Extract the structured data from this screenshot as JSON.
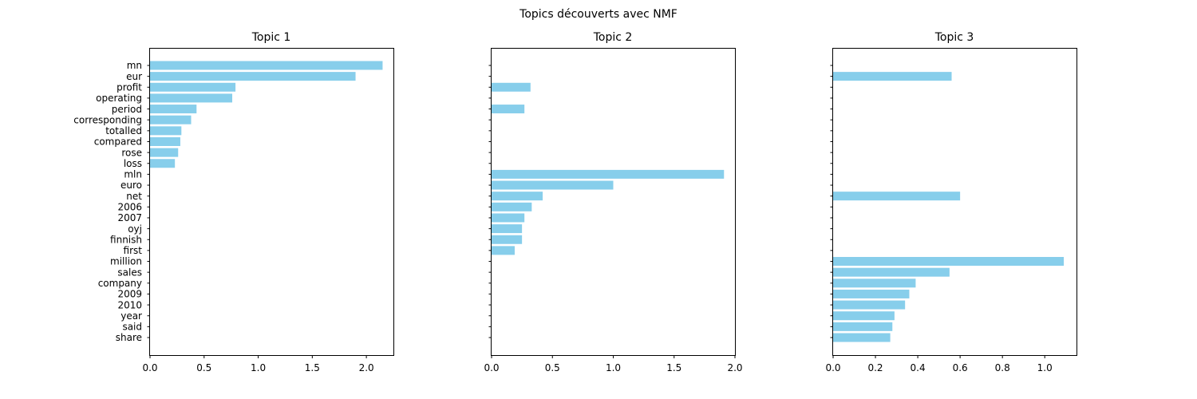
{
  "chart_data": {
    "type": "bar",
    "orientation": "horizontal",
    "title": "Topics découverts avec NMF",
    "bar_color": "#87ceeb",
    "categories": [
      "mn",
      "eur",
      "profit",
      "operating",
      "period",
      "corresponding",
      "totalled",
      "compared",
      "rose",
      "loss",
      "mln",
      "euro",
      "net",
      "2006",
      "2007",
      "oyj",
      "finnish",
      "first",
      "million",
      "sales",
      "company",
      "2009",
      "2010",
      "year",
      "said",
      "share"
    ],
    "panels": [
      {
        "title": "Topic 1",
        "xlim": [
          0,
          2.25
        ],
        "xticks": [
          "0.0",
          "0.5",
          "1.0",
          "1.5",
          "2.0"
        ],
        "xtick_values": [
          0,
          0.5,
          1.0,
          1.5,
          2.0
        ],
        "show_ytick_labels": true,
        "values": [
          2.15,
          1.9,
          0.79,
          0.76,
          0.43,
          0.38,
          0.29,
          0.28,
          0.26,
          0.23,
          0,
          0,
          0,
          0,
          0,
          0,
          0,
          0,
          0,
          0,
          0,
          0,
          0,
          0,
          0,
          0
        ]
      },
      {
        "title": "Topic 2",
        "xlim": [
          0,
          2.0
        ],
        "xticks": [
          "0.0",
          "0.5",
          "1.0",
          "1.5",
          "2.0"
        ],
        "xtick_values": [
          0,
          0.5,
          1.0,
          1.5,
          2.0
        ],
        "show_ytick_labels": false,
        "values": [
          0,
          0,
          0.32,
          0,
          0.27,
          0,
          0,
          0,
          0,
          0,
          1.91,
          1.0,
          0.42,
          0.33,
          0.27,
          0.25,
          0.25,
          0.19,
          0,
          0,
          0,
          0,
          0,
          0,
          0,
          0
        ]
      },
      {
        "title": "Topic 3",
        "xlim": [
          0,
          1.15
        ],
        "xticks": [
          "0.0",
          "0.2",
          "0.4",
          "0.6",
          "0.8",
          "1.0"
        ],
        "xtick_values": [
          0,
          0.2,
          0.4,
          0.6,
          0.8,
          1.0
        ],
        "show_ytick_labels": false,
        "values": [
          0,
          0.56,
          0,
          0,
          0,
          0,
          0,
          0,
          0,
          0,
          0,
          0,
          0.6,
          0,
          0,
          0,
          0,
          0,
          1.09,
          0.55,
          0.39,
          0.36,
          0.34,
          0.29,
          0.28,
          0.27
        ]
      }
    ]
  }
}
